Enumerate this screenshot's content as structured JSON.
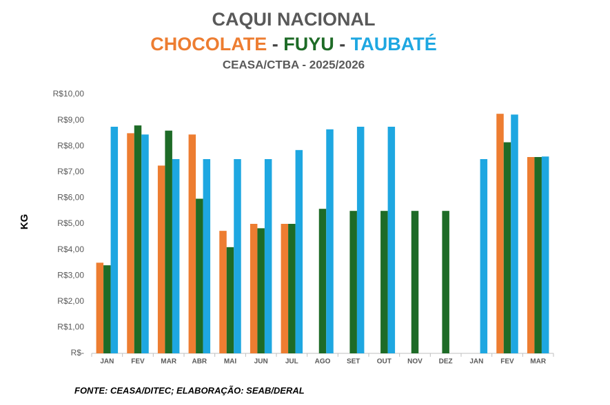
{
  "chart_data": {
    "type": "bar",
    "title": "CAQUI NACIONAL",
    "title_separators": [
      "-",
      "-"
    ],
    "subtitle": "CEASA/CTBA - 2025/2026",
    "y_label": "KG",
    "source": "FONTE: CEASA/DITEC; ELABORAÇÃO: SEAB/DERAL",
    "categories": [
      "JAN",
      "FEV",
      "MAR",
      "ABR",
      "MAI",
      "JUN",
      "JUL",
      "AGO",
      "SET",
      "OUT",
      "NOV",
      "DEZ",
      "JAN",
      "FEV",
      "MAR"
    ],
    "series": [
      {
        "name": "CHOCOLATE",
        "color": "#ed7d31",
        "values": [
          3.5,
          8.5,
          7.25,
          8.45,
          4.73,
          5.0,
          5.0,
          null,
          null,
          null,
          null,
          null,
          null,
          9.25,
          7.58
        ]
      },
      {
        "name": "FUYU",
        "color": "#1e6b27",
        "values": [
          3.4,
          8.8,
          8.6,
          5.97,
          4.1,
          4.83,
          5.0,
          5.58,
          5.5,
          5.5,
          5.5,
          5.5,
          null,
          8.15,
          7.58
        ]
      },
      {
        "name": "TAUBATÉ",
        "color": "#1ea7e1",
        "values": [
          8.75,
          8.45,
          7.5,
          7.5,
          7.5,
          7.5,
          7.85,
          8.65,
          8.75,
          8.75,
          null,
          null,
          7.5,
          9.22,
          7.6
        ]
      }
    ],
    "ylim": [
      0,
      10
    ],
    "yticks": [
      {
        "value": 0,
        "label": "R$-"
      },
      {
        "value": 1,
        "label": "R$1,00"
      },
      {
        "value": 2,
        "label": "R$2,00"
      },
      {
        "value": 3,
        "label": "R$3,00"
      },
      {
        "value": 4,
        "label": "R$4,00"
      },
      {
        "value": 5,
        "label": "R$5,00"
      },
      {
        "value": 6,
        "label": "R$6,00"
      },
      {
        "value": 7,
        "label": "R$7,00"
      },
      {
        "value": 8,
        "label": "R$8,00"
      },
      {
        "value": 9,
        "label": "R$9,00"
      },
      {
        "value": 10,
        "label": "R$10,00"
      }
    ],
    "grid": false
  }
}
